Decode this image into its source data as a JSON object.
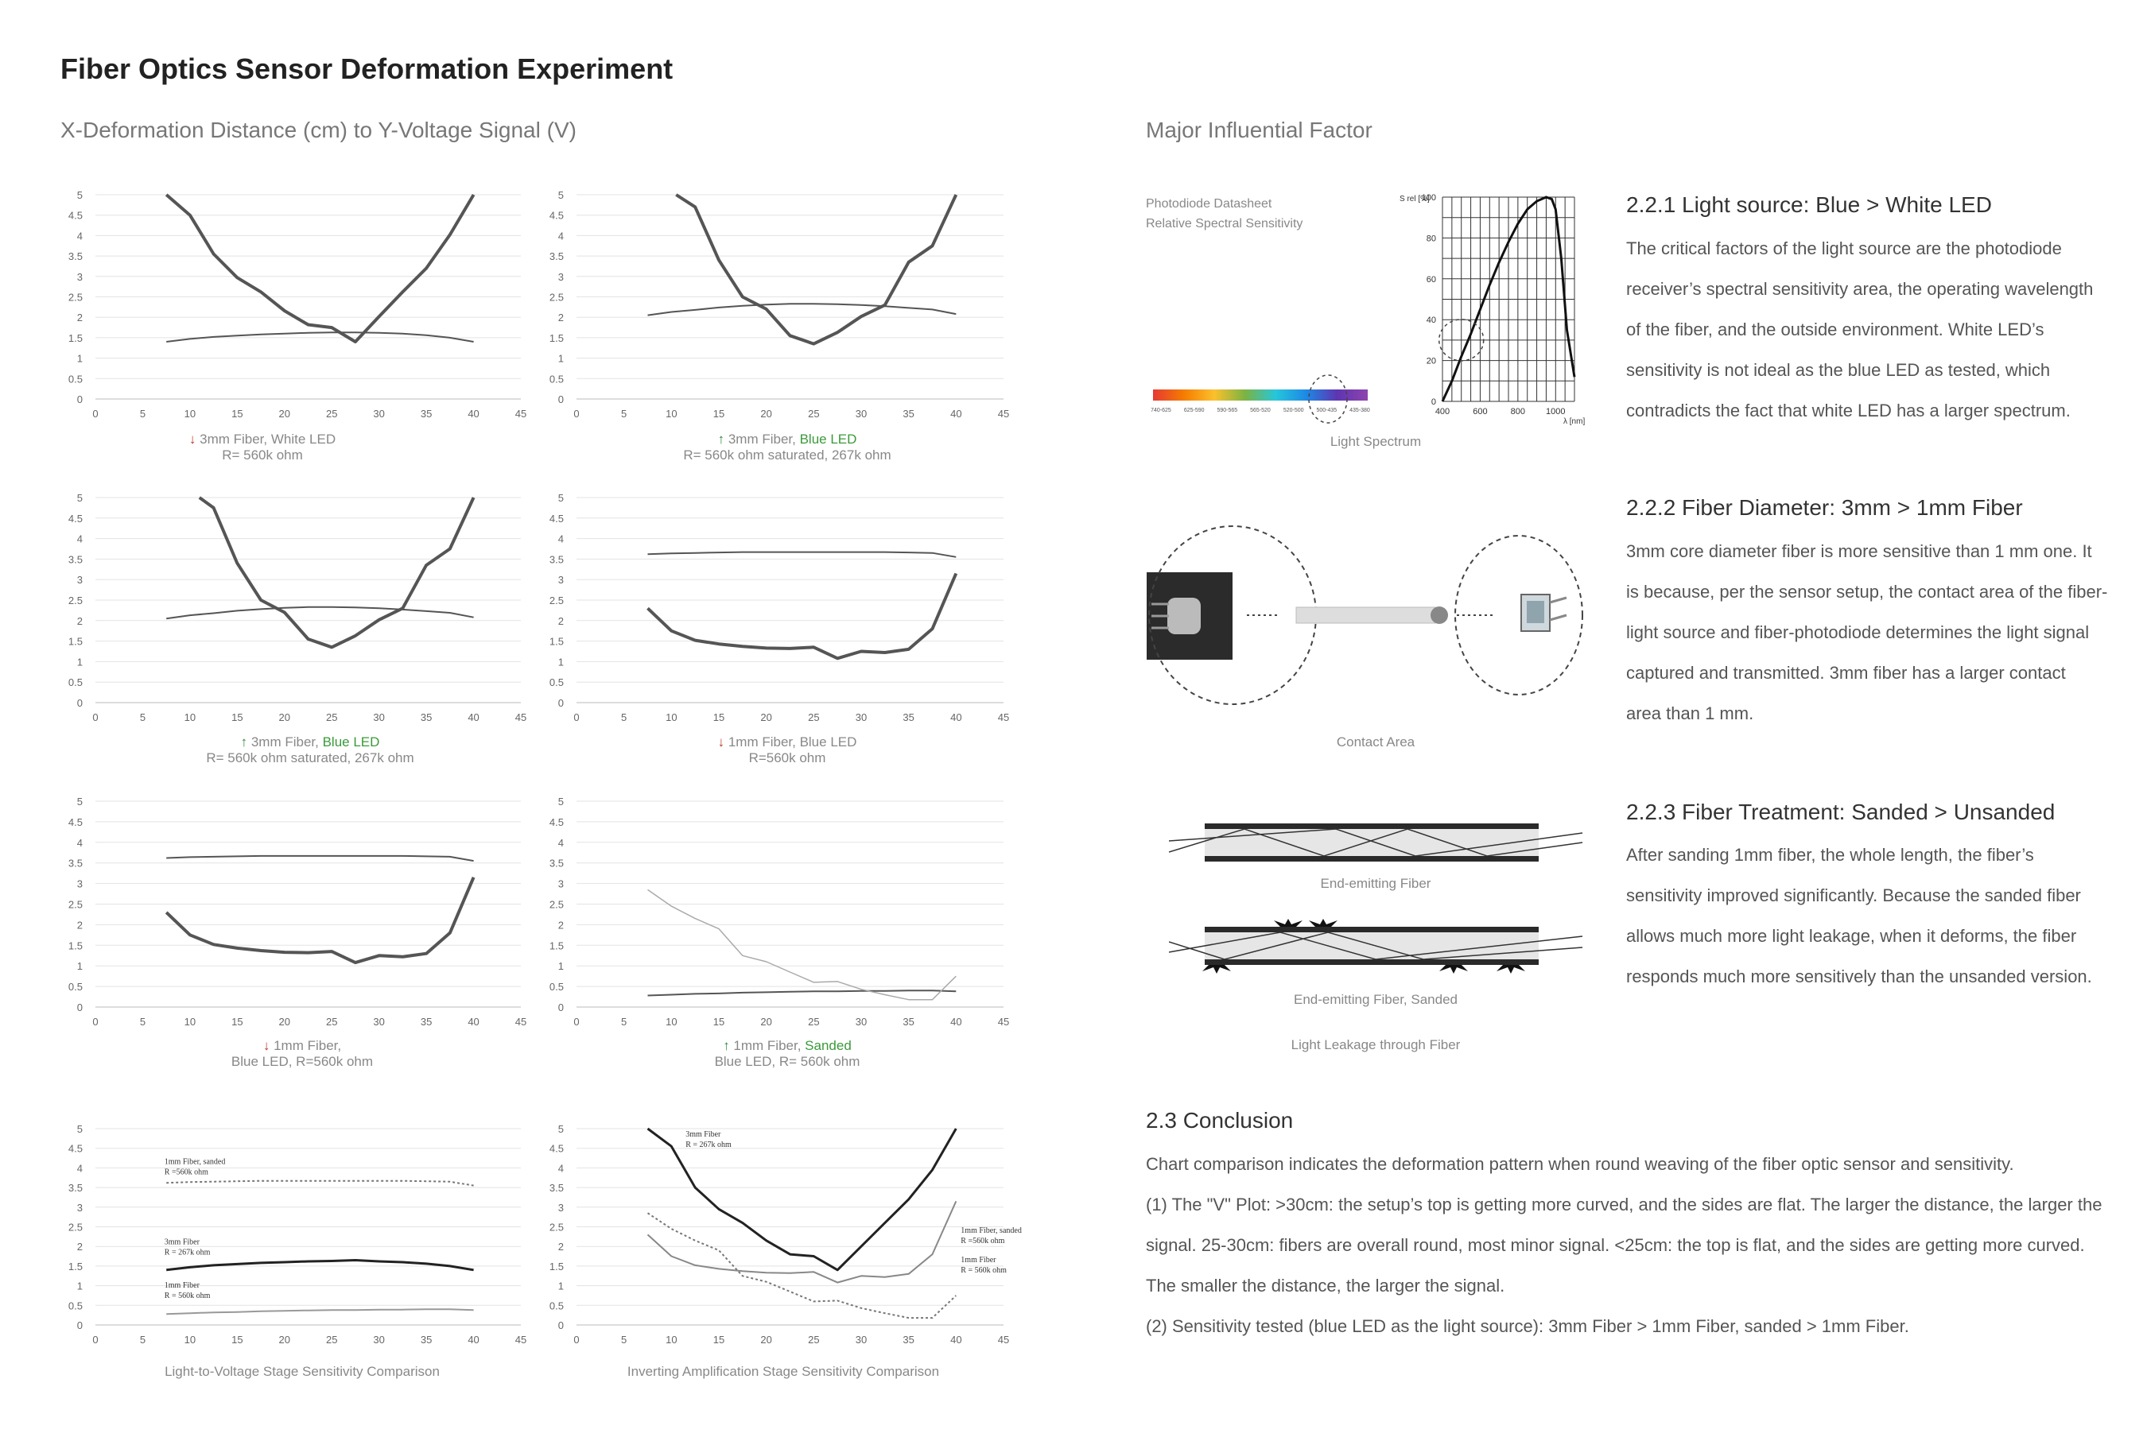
{
  "title": "Fiber Optics Sensor Deformation Experiment",
  "left_subtitle": "X-Deformation Distance (cm) to Y-Voltage Signal (V)",
  "right_subtitle": "Major Influential Factor",
  "chart_data": [
    {
      "type": "line",
      "xlim": [
        0,
        45
      ],
      "ylim": [
        0,
        5
      ],
      "x_ticks": [
        "0",
        "5",
        "10",
        "15",
        "20",
        "25",
        "30",
        "35",
        "40",
        "45"
      ],
      "y_ticks": [
        "0",
        "0.5",
        "1",
        "1.5",
        "2",
        "2.5",
        "3",
        "3.5",
        "4",
        "4.5",
        "5"
      ],
      "series": [
        {
          "x": [
            7.5,
            10,
            12.5,
            15,
            17.5,
            20,
            22.5,
            25,
            27.5,
            30,
            32.5,
            35,
            37.5,
            40
          ],
          "values": [
            1.4,
            1.47,
            1.52,
            1.55,
            1.58,
            1.6,
            1.62,
            1.63,
            1.63,
            1.62,
            1.6,
            1.56,
            1.5,
            1.4
          ]
        },
        {
          "x": [
            7.5,
            10,
            12.5,
            15,
            17.5,
            20,
            22.5,
            25,
            27.5,
            30,
            32.5,
            35,
            37.5,
            40
          ],
          "values": [
            5,
            4.5,
            3.55,
            2.97,
            2.62,
            2.16,
            1.82,
            1.75,
            1.4,
            2.02,
            2.62,
            3.2,
            4.02,
            5
          ]
        }
      ]
    },
    {
      "type": "line",
      "xlim": [
        0,
        45
      ],
      "ylim": [
        0,
        5
      ],
      "x_ticks": [
        "0",
        "5",
        "10",
        "15",
        "20",
        "25",
        "30",
        "35",
        "40",
        "45"
      ],
      "y_ticks": [
        "0",
        "0.5",
        "1",
        "1.5",
        "2",
        "2.5",
        "3",
        "3.5",
        "4",
        "4.5",
        "5"
      ],
      "series": [
        {
          "x": [
            7.5,
            10,
            12.5,
            15,
            17.5,
            20,
            22.5,
            25,
            27.5,
            30,
            32.5,
            35,
            37.5,
            40
          ],
          "values": [
            2.05,
            2.13,
            2.18,
            2.24,
            2.28,
            2.31,
            2.33,
            2.33,
            2.32,
            2.3,
            2.27,
            2.23,
            2.19,
            2.08
          ]
        },
        {
          "x": [
            10.5,
            12.5,
            15,
            17.5,
            20,
            22.5,
            25,
            27.5,
            30,
            32.5,
            35,
            37.5,
            40
          ],
          "values": [
            5,
            4.7,
            3.4,
            2.5,
            2.2,
            1.55,
            1.35,
            1.63,
            2.02,
            2.3,
            3.35,
            3.75,
            5
          ]
        }
      ]
    },
    {
      "type": "line",
      "xlim": [
        0,
        45
      ],
      "ylim": [
        0,
        5
      ],
      "x_ticks": [
        "0",
        "5",
        "10",
        "15",
        "20",
        "25",
        "30",
        "35",
        "40",
        "45"
      ],
      "y_ticks": [
        "0",
        "0.5",
        "1",
        "1.5",
        "2",
        "2.5",
        "3",
        "3.5",
        "4",
        "4.5",
        "5"
      ],
      "series": [
        {
          "x": [
            7.5,
            10,
            12.5,
            15,
            17.5,
            20,
            22.5,
            25,
            27.5,
            30,
            32.5,
            35,
            37.5,
            40
          ],
          "values": [
            2.05,
            2.13,
            2.18,
            2.24,
            2.28,
            2.31,
            2.33,
            2.33,
            2.32,
            2.3,
            2.27,
            2.23,
            2.19,
            2.08
          ]
        },
        {
          "x": [
            11,
            12.5,
            15,
            17.5,
            20,
            22.5,
            25,
            27.5,
            30,
            32.5,
            35,
            37.5,
            40
          ],
          "values": [
            5,
            4.75,
            3.4,
            2.5,
            2.2,
            1.55,
            1.35,
            1.63,
            2.02,
            2.3,
            3.35,
            3.75,
            5
          ]
        }
      ]
    },
    {
      "type": "line",
      "xlim": [
        0,
        45
      ],
      "ylim": [
        0,
        5
      ],
      "x_ticks": [
        "0",
        "5",
        "10",
        "15",
        "20",
        "25",
        "30",
        "35",
        "40",
        "45"
      ],
      "y_ticks": [
        "0",
        "0.5",
        "1",
        "1.5",
        "2",
        "2.5",
        "3",
        "3.5",
        "4",
        "4.5",
        "5"
      ],
      "series": [
        {
          "x": [
            7.5,
            10,
            12.5,
            15,
            17.5,
            20,
            22.5,
            25,
            27.5,
            30,
            32.5,
            35,
            37.5,
            40
          ],
          "values": [
            3.62,
            3.64,
            3.65,
            3.66,
            3.67,
            3.67,
            3.67,
            3.67,
            3.67,
            3.67,
            3.67,
            3.66,
            3.65,
            3.55
          ]
        },
        {
          "x": [
            7.5,
            10,
            12.5,
            15,
            17.5,
            20,
            22.5,
            25,
            27.5,
            30,
            32.5,
            35,
            37.5,
            40
          ],
          "values": [
            2.3,
            1.75,
            1.52,
            1.43,
            1.37,
            1.33,
            1.32,
            1.35,
            1.08,
            1.25,
            1.22,
            1.3,
            1.8,
            3.15
          ]
        }
      ]
    },
    {
      "type": "line",
      "xlim": [
        0,
        45
      ],
      "ylim": [
        0,
        5
      ],
      "x_ticks": [
        "0",
        "5",
        "10",
        "15",
        "20",
        "25",
        "30",
        "35",
        "40",
        "45"
      ],
      "y_ticks": [
        "0",
        "0.5",
        "1",
        "1.5",
        "2",
        "2.5",
        "3",
        "3.5",
        "4",
        "4.5",
        "5"
      ],
      "series": [
        {
          "x": [
            7.5,
            10,
            12.5,
            15,
            17.5,
            20,
            22.5,
            25,
            27.5,
            30,
            32.5,
            35,
            37.5,
            40
          ],
          "values": [
            3.62,
            3.64,
            3.65,
            3.66,
            3.67,
            3.67,
            3.67,
            3.67,
            3.67,
            3.67,
            3.67,
            3.66,
            3.65,
            3.55
          ]
        },
        {
          "x": [
            7.5,
            10,
            12.5,
            15,
            17.5,
            20,
            22.5,
            25,
            27.5,
            30,
            32.5,
            35,
            37.5,
            40
          ],
          "values": [
            2.3,
            1.75,
            1.52,
            1.43,
            1.37,
            1.33,
            1.32,
            1.35,
            1.08,
            1.25,
            1.22,
            1.3,
            1.8,
            3.15
          ]
        }
      ]
    },
    {
      "type": "line",
      "xlim": [
        0,
        45
      ],
      "ylim": [
        0,
        5
      ],
      "x_ticks": [
        "0",
        "5",
        "10",
        "15",
        "20",
        "25",
        "30",
        "35",
        "40",
        "45"
      ],
      "y_ticks": [
        "0",
        "0.5",
        "1",
        "1.5",
        "2",
        "2.5",
        "3",
        "3.5",
        "4",
        "4.5",
        "5"
      ],
      "series": [
        {
          "x": [
            7.5,
            10,
            12.5,
            15,
            17.5,
            20,
            22.5,
            25,
            27.5,
            30,
            32.5,
            35,
            37.5,
            40
          ],
          "values": [
            0.28,
            0.3,
            0.32,
            0.33,
            0.35,
            0.36,
            0.37,
            0.38,
            0.38,
            0.39,
            0.39,
            0.4,
            0.4,
            0.38
          ]
        },
        {
          "x": [
            7.5,
            10,
            12.5,
            15,
            17.5,
            20,
            22.5,
            25,
            27.5,
            30,
            32.5,
            35,
            37.5,
            40
          ],
          "values": [
            2.85,
            2.45,
            2.15,
            1.9,
            1.25,
            1.1,
            0.85,
            0.6,
            0.62,
            0.43,
            0.3,
            0.18,
            0.18,
            0.75
          ]
        }
      ]
    },
    {
      "type": "line",
      "xlim": [
        0,
        45
      ],
      "ylim": [
        0,
        5
      ],
      "x_ticks": [
        "0",
        "5",
        "10",
        "15",
        "20",
        "25",
        "30",
        "35",
        "40",
        "45"
      ],
      "y_ticks": [
        "0",
        "0.5",
        "1",
        "1.5",
        "2",
        "2.5",
        "3",
        "3.5",
        "4",
        "4.5",
        "5"
      ],
      "series": [
        {
          "name": "1mm Fiber, sanded",
          "x": [
            7.5,
            10,
            12.5,
            15,
            17.5,
            20,
            22.5,
            25,
            27.5,
            30,
            32.5,
            35,
            37.5,
            40
          ],
          "values": [
            3.62,
            3.64,
            3.65,
            3.66,
            3.67,
            3.67,
            3.67,
            3.67,
            3.67,
            3.67,
            3.67,
            3.66,
            3.65,
            3.55
          ]
        },
        {
          "name": "3mm Fiber",
          "x": [
            7.5,
            10,
            12.5,
            15,
            17.5,
            20,
            22.5,
            25,
            27.5,
            30,
            32.5,
            35,
            37.5,
            40
          ],
          "values": [
            1.4,
            1.47,
            1.52,
            1.55,
            1.58,
            1.6,
            1.62,
            1.63,
            1.65,
            1.62,
            1.6,
            1.56,
            1.5,
            1.4
          ]
        },
        {
          "name": "1mm Fiber",
          "x": [
            7.5,
            10,
            12.5,
            15,
            17.5,
            20,
            22.5,
            25,
            27.5,
            30,
            32.5,
            35,
            37.5,
            40
          ],
          "values": [
            0.28,
            0.3,
            0.32,
            0.33,
            0.35,
            0.36,
            0.37,
            0.38,
            0.38,
            0.39,
            0.39,
            0.4,
            0.4,
            0.38
          ]
        }
      ]
    },
    {
      "type": "line",
      "xlim": [
        0,
        45
      ],
      "ylim": [
        0,
        5
      ],
      "x_ticks": [
        "0",
        "5",
        "10",
        "15",
        "20",
        "25",
        "30",
        "35",
        "40",
        "45"
      ],
      "y_ticks": [
        "0",
        "0.5",
        "1",
        "1.5",
        "2",
        "2.5",
        "3",
        "3.5",
        "4",
        "4.5",
        "5"
      ],
      "series": [
        {
          "name": "3mm Fiber",
          "x": [
            7.5,
            10,
            12.5,
            15,
            17.5,
            20,
            22.5,
            25,
            27.5,
            30,
            32.5,
            35,
            37.5,
            40
          ],
          "values": [
            5,
            4.55,
            3.5,
            2.95,
            2.6,
            2.15,
            1.8,
            1.75,
            1.4,
            2.0,
            2.6,
            3.2,
            3.95,
            5
          ]
        },
        {
          "name": "1mm Fiber, sanded",
          "x": [
            7.5,
            10,
            12.5,
            15,
            17.5,
            20,
            22.5,
            25,
            27.5,
            30,
            32.5,
            35,
            37.5,
            40
          ],
          "values": [
            2.85,
            2.45,
            2.15,
            1.9,
            1.25,
            1.1,
            0.85,
            0.6,
            0.62,
            0.43,
            0.3,
            0.18,
            0.18,
            0.75
          ]
        },
        {
          "name": "1mm Fiber",
          "x": [
            7.5,
            10,
            12.5,
            15,
            17.5,
            20,
            22.5,
            25,
            27.5,
            30,
            32.5,
            35,
            37.5,
            40
          ],
          "values": [
            2.3,
            1.75,
            1.52,
            1.43,
            1.37,
            1.33,
            1.32,
            1.35,
            1.08,
            1.25,
            1.22,
            1.3,
            1.8,
            3.15
          ]
        }
      ]
    }
  ],
  "captions": {
    "c1_l1": "3mm Fiber, White LED",
    "c1_l2": "R= 560k ohm",
    "c2_a": "3mm Fiber, ",
    "c2_b": "Blue LED",
    "c2_l2": "R= 560k ohm saturated, 267k ohm",
    "c3_a": "3mm Fiber, ",
    "c3_b": "Blue LED",
    "c3_l2": "R= 560k ohm saturated, 267k ohm",
    "c4_l1": "1mm Fiber, Blue LED",
    "c4_l2": "R=560k ohm",
    "c5_l1": "1mm Fiber,",
    "c5_l2": "Blue LED, R=560k ohm",
    "c6_a": "1mm Fiber, ",
    "c6_b": "Sanded",
    "c6_l2": "Blue LED, R= 560k ohm",
    "c7": "Light-to-Voltage Stage Sensitivity Comparison",
    "c8": "Inverting Amplification Stage Sensitivity Comparison"
  },
  "chart7_labels": {
    "a1": "1mm Fiber, sanded",
    "a2": "R =560k ohm",
    "b1": "3mm Fiber",
    "b2": "R = 267k ohm",
    "c1": "1mm Fiber",
    "c2": "R = 560k ohm"
  },
  "chart8_labels": {
    "a1": "3mm Fiber",
    "a2": "R = 267k ohm",
    "b1": "1mm Fiber, sanded",
    "b2": "R =560k ohm",
    "c1": "1mm Fiber",
    "c2": "R = 560k ohm"
  },
  "datasheet": {
    "label1": "Photodiode Datasheet",
    "label2": "Relative Spectral Sensitivity",
    "y_unit": "S rel [%]",
    "x_unit": "λ [nm]",
    "y_ticks": [
      "0",
      "20",
      "40",
      "60",
      "80",
      "100"
    ],
    "x_ticks": [
      "400",
      "600",
      "800",
      "1000"
    ],
    "spectrum_ticks": [
      "740-625",
      "625-590",
      "590-565",
      "565-520",
      "520-500",
      "500-435",
      "435-380"
    ],
    "spectrum_caption": "Light Spectrum",
    "curve": {
      "x": [
        400,
        450,
        500,
        550,
        600,
        650,
        700,
        750,
        800,
        850,
        900,
        950,
        980,
        1000,
        1030,
        1060,
        1100
      ],
      "values": [
        0,
        10,
        22,
        33,
        45,
        57,
        68,
        78,
        87,
        94,
        98,
        100,
        99,
        94,
        70,
        35,
        12
      ]
    }
  },
  "spectrum_colors": [
    "#e53935",
    "#f57c00",
    "#fbc02d",
    "#7cb342",
    "#26c6da",
    "#1e88e5",
    "#5e35b1",
    "#8e44ad"
  ],
  "contact_area_caption": "Contact Area",
  "end_emitting_caption": "End-emitting Fiber",
  "end_emitting_sanded_caption": "End-emitting Fiber, Sanded",
  "leakage_caption": "Light Leakage through Fiber",
  "sections": [
    {
      "heading": "2.2.1 Light source: Blue > White LED",
      "lines": [
        "The critical factors of the light source are the photodiode",
        "receiver’s spectral sensitivity area, the operating wavelength",
        "of the fiber, and the outside environment. White LED’s",
        "sensitivity is not ideal as the blue LED as tested, which",
        "contradicts the fact that white LED has a larger spectrum."
      ]
    },
    {
      "heading": "2.2.2 Fiber Diameter: 3mm > 1mm Fiber",
      "lines": [
        "3mm core diameter fiber is more sensitive than 1 mm one. It",
        "is because, per the sensor setup, the contact area of the fiber-",
        "light source and fiber-photodiode determines the light signal",
        "captured and transmitted. 3mm fiber has a larger contact",
        "area than 1 mm."
      ]
    },
    {
      "heading": "2.2.3 Fiber Treatment: Sanded > Unsanded",
      "lines": [
        "After sanding 1mm fiber, the whole length, the fiber’s",
        "sensitivity improved significantly. Because the sanded fiber",
        "allows much more light leakage, when it deforms, the fiber",
        "responds much more sensitively than the unsanded version."
      ]
    }
  ],
  "conclusion": {
    "heading": "2.3 Conclusion",
    "lines": [
      "Chart comparison indicates the deformation pattern when round weaving of the fiber optic sensor and sensitivity.",
      "(1) The \"V\" Plot: >30cm: the setup’s top is getting more curved, and the sides are flat. The larger the distance, the larger the",
      "signal. 25-30cm: fibers are overall round, most minor signal.  <25cm: the top is flat, and the sides are getting more curved.",
      "The smaller the distance, the larger the signal.",
      "(2) Sensitivity tested (blue LED as the light source): 3mm Fiber > 1mm Fiber, sanded > 1mm Fiber."
    ]
  },
  "arrows": {
    "down": "🡓",
    "up": "🡑"
  }
}
